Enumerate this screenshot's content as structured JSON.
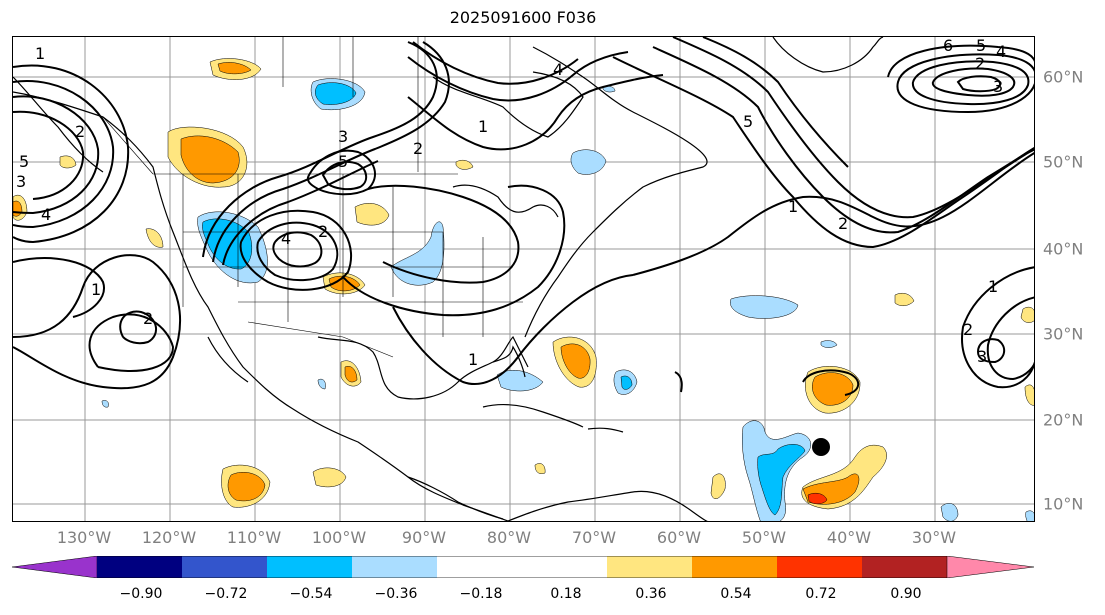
{
  "title": "2025091600 F036",
  "lon_labels": [
    "130°W",
    "120°W",
    "110°W",
    "100°W",
    "90°W",
    "80°W",
    "70°W",
    "60°W",
    "50°W",
    "40°W",
    "30°W"
  ],
  "lat_labels": [
    "60°N",
    "50°N",
    "40°N",
    "30°N",
    "20°N",
    "10°N"
  ],
  "colorbar": {
    "colors": [
      "#9933cc",
      "#000080",
      "#3355cc",
      "#00bfff",
      "#aaddff",
      "#ffffff",
      "#ffe680",
      "#ff9900",
      "#ff3300",
      "#b22222",
      "#ff88aa"
    ],
    "ticks": [
      "−0.90",
      "−0.72",
      "−0.54",
      "−0.36",
      "−0.18",
      "0.18",
      "0.36",
      "0.54",
      "0.72",
      "0.90"
    ]
  },
  "contour_labels": [
    "1",
    "2",
    "3",
    "4",
    "5",
    "6",
    "1",
    "2",
    "3",
    "4",
    "6",
    "1",
    "2",
    "3",
    "1",
    "2",
    "3",
    "4",
    "5",
    "6",
    "1",
    "2",
    "3",
    "4",
    "6",
    "1",
    "2",
    "3",
    "1"
  ],
  "colors": {
    "orange": "#ff9900",
    "yellow": "#ffe680",
    "light_blue": "#aaddff",
    "cyan": "#00bfff",
    "red": "#ff3300",
    "marker": "#000000"
  }
}
